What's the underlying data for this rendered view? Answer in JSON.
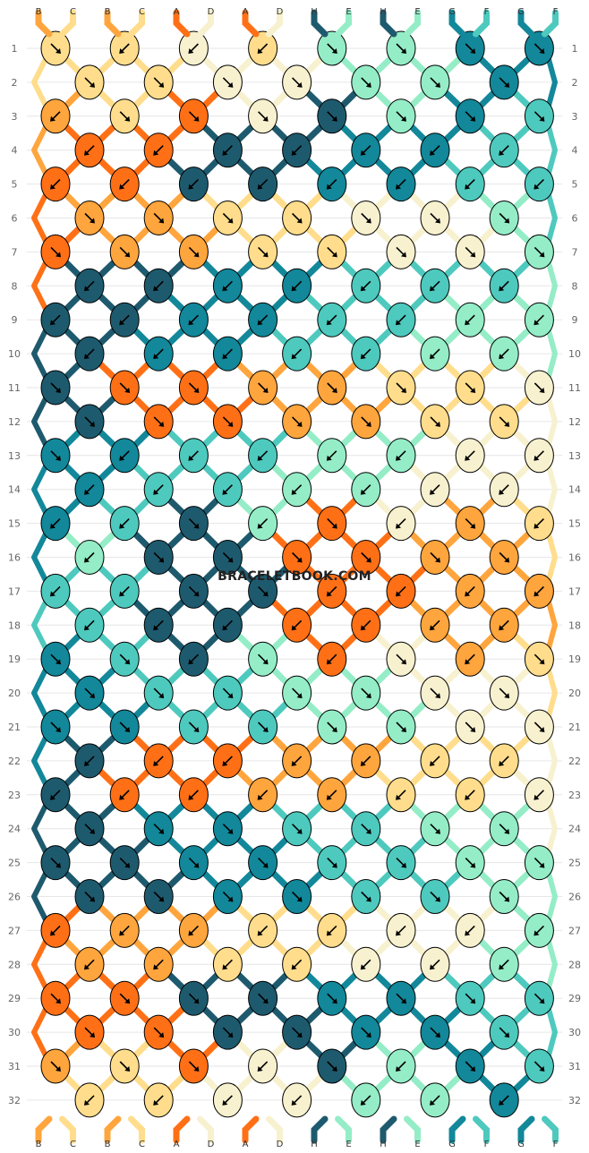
{
  "site_watermark": "BRACELETBOOK.COM",
  "strands": {
    "top_labels": [
      "B",
      "C",
      "B",
      "C",
      "A",
      "D",
      "A",
      "D",
      "H",
      "E",
      "H",
      "E",
      "G",
      "F",
      "G",
      "F"
    ],
    "bottom_labels": [
      "B",
      "C",
      "B",
      "C",
      "A",
      "D",
      "A",
      "D",
      "H",
      "E",
      "H",
      "E",
      "G",
      "F",
      "G",
      "F"
    ]
  },
  "color_map": {
    "A": "#ff7016",
    "B": "#ffa53d",
    "C": "#ffdd8c",
    "D": "#f7f1cf",
    "E": "#94edc7",
    "F": "#4ec9be",
    "G": "#12889a",
    "H": "#1e5a6e"
  },
  "rows": [
    "1",
    "2",
    "3",
    "4",
    "5",
    "6",
    "7",
    "8",
    "9",
    "10",
    "11",
    "12",
    "13",
    "14",
    "15",
    "16",
    "17",
    "18",
    "19",
    "20",
    "21",
    "22",
    "23",
    "24",
    "25",
    "26",
    "27",
    "28",
    "29",
    "30",
    "31",
    "32"
  ],
  "knot_rows": [
    {
      "colors": [
        "C",
        "C",
        "D",
        "C",
        "E",
        "E",
        "G",
        "G"
      ],
      "dirs": [
        "br",
        "bl",
        "bl",
        "bl",
        "br",
        "br",
        "br",
        "br"
      ]
    },
    {
      "colors": [
        "C",
        "C",
        "D",
        "D",
        "E",
        "E",
        "G"
      ],
      "dirs": [
        "br",
        "br",
        "br",
        "br",
        "br",
        "br",
        "br"
      ]
    },
    {
      "colors": [
        "B",
        "C",
        "A",
        "D",
        "H",
        "E",
        "G",
        "F"
      ],
      "dirs": [
        "bl",
        "br",
        "br",
        "br",
        "br",
        "br",
        "br",
        "br"
      ]
    },
    {
      "colors": [
        "A",
        "A",
        "H",
        "H",
        "G",
        "G",
        "F"
      ],
      "dirs": [
        "bl",
        "bl",
        "bl",
        "bl",
        "bl",
        "bl",
        "bl"
      ]
    },
    {
      "colors": [
        "A",
        "A",
        "H",
        "H",
        "G",
        "G",
        "F",
        "F"
      ],
      "dirs": [
        "bl",
        "bl",
        "bl",
        "bl",
        "bl",
        "bl",
        "bl",
        "bl"
      ]
    },
    {
      "colors": [
        "B",
        "B",
        "C",
        "C",
        "D",
        "D",
        "E"
      ],
      "dirs": [
        "br",
        "br",
        "br",
        "br",
        "br",
        "br",
        "br"
      ]
    },
    {
      "colors": [
        "A",
        "B",
        "B",
        "C",
        "C",
        "D",
        "D",
        "E"
      ],
      "dirs": [
        "br",
        "br",
        "br",
        "br",
        "br",
        "br",
        "br",
        "br"
      ]
    },
    {
      "colors": [
        "H",
        "H",
        "G",
        "G",
        "F",
        "F",
        "F"
      ],
      "dirs": [
        "bl",
        "bl",
        "bl",
        "bl",
        "bl",
        "bl",
        "bl"
      ]
    },
    {
      "colors": [
        "H",
        "H",
        "G",
        "G",
        "F",
        "F",
        "E",
        "E"
      ],
      "dirs": [
        "bl",
        "bl",
        "bl",
        "bl",
        "bl",
        "bl",
        "bl",
        "bl"
      ]
    },
    {
      "colors": [
        "H",
        "G",
        "G",
        "F",
        "F",
        "E",
        "E"
      ],
      "dirs": [
        "bl",
        "bl",
        "bl",
        "bl",
        "bl",
        "bl",
        "bl"
      ]
    },
    {
      "colors": [
        "H",
        "A",
        "A",
        "B",
        "B",
        "C",
        "C",
        "D"
      ],
      "dirs": [
        "br",
        "br",
        "br",
        "br",
        "br",
        "br",
        "br",
        "br"
      ]
    },
    {
      "colors": [
        "H",
        "A",
        "A",
        "B",
        "B",
        "C",
        "C"
      ],
      "dirs": [
        "br",
        "br",
        "br",
        "br",
        "br",
        "br",
        "br"
      ]
    },
    {
      "colors": [
        "G",
        "G",
        "F",
        "F",
        "E",
        "E",
        "D",
        "D"
      ],
      "dirs": [
        "br",
        "bl",
        "bl",
        "bl",
        "bl",
        "bl",
        "bl",
        "bl"
      ]
    },
    {
      "colors": [
        "G",
        "F",
        "F",
        "E",
        "E",
        "D",
        "D"
      ],
      "dirs": [
        "bl",
        "bl",
        "bl",
        "bl",
        "bl",
        "bl",
        "bl"
      ]
    },
    {
      "colors": [
        "G",
        "F",
        "H",
        "E",
        "A",
        "D",
        "B",
        "C"
      ],
      "dirs": [
        "bl",
        "bl",
        "br",
        "bl",
        "br",
        "bl",
        "br",
        "bl"
      ]
    },
    {
      "colors": [
        "E",
        "H",
        "H",
        "A",
        "A",
        "B",
        "B"
      ],
      "dirs": [
        "bl",
        "br",
        "br",
        "br",
        "br",
        "br",
        "br"
      ]
    },
    {
      "colors": [
        "F",
        "F",
        "H",
        "H",
        "A",
        "A",
        "B",
        "B"
      ],
      "dirs": [
        "bl",
        "bl",
        "br",
        "br",
        "bl",
        "bl",
        "bl",
        "bl"
      ]
    },
    {
      "colors": [
        "F",
        "H",
        "H",
        "A",
        "A",
        "B",
        "B"
      ],
      "dirs": [
        "bl",
        "bl",
        "bl",
        "bl",
        "bl",
        "bl",
        "bl"
      ]
    },
    {
      "colors": [
        "G",
        "F",
        "H",
        "E",
        "A",
        "D",
        "B",
        "C"
      ],
      "dirs": [
        "br",
        "br",
        "bl",
        "br",
        "bl",
        "br",
        "bl",
        "br"
      ]
    },
    {
      "colors": [
        "G",
        "F",
        "F",
        "E",
        "E",
        "D",
        "D"
      ],
      "dirs": [
        "br",
        "br",
        "br",
        "br",
        "br",
        "br",
        "br"
      ]
    },
    {
      "colors": [
        "G",
        "G",
        "F",
        "F",
        "E",
        "E",
        "D",
        "D"
      ],
      "dirs": [
        "br",
        "br",
        "br",
        "br",
        "br",
        "br",
        "br",
        "br"
      ]
    },
    {
      "colors": [
        "H",
        "A",
        "A",
        "B",
        "B",
        "C",
        "C"
      ],
      "dirs": [
        "bl",
        "bl",
        "bl",
        "bl",
        "bl",
        "bl",
        "bl"
      ]
    },
    {
      "colors": [
        "H",
        "A",
        "A",
        "B",
        "B",
        "C",
        "C",
        "D"
      ],
      "dirs": [
        "bl",
        "bl",
        "bl",
        "bl",
        "bl",
        "bl",
        "bl",
        "bl"
      ]
    },
    {
      "colors": [
        "H",
        "G",
        "G",
        "F",
        "F",
        "E",
        "E"
      ],
      "dirs": [
        "br",
        "br",
        "br",
        "br",
        "br",
        "br",
        "br"
      ]
    },
    {
      "colors": [
        "H",
        "H",
        "G",
        "G",
        "F",
        "F",
        "E",
        "E"
      ],
      "dirs": [
        "br",
        "br",
        "br",
        "br",
        "br",
        "br",
        "br",
        "br"
      ]
    },
    {
      "colors": [
        "H",
        "H",
        "G",
        "G",
        "F",
        "F",
        "E"
      ],
      "dirs": [
        "br",
        "br",
        "br",
        "br",
        "br",
        "br",
        "br"
      ]
    },
    {
      "colors": [
        "A",
        "B",
        "B",
        "C",
        "C",
        "D",
        "D",
        "E"
      ],
      "dirs": [
        "bl",
        "bl",
        "bl",
        "bl",
        "bl",
        "bl",
        "bl",
        "bl"
      ]
    },
    {
      "colors": [
        "B",
        "B",
        "C",
        "C",
        "D",
        "D",
        "E"
      ],
      "dirs": [
        "bl",
        "bl",
        "bl",
        "bl",
        "bl",
        "bl",
        "bl"
      ]
    },
    {
      "colors": [
        "A",
        "A",
        "H",
        "H",
        "G",
        "G",
        "F",
        "F"
      ],
      "dirs": [
        "br",
        "br",
        "br",
        "br",
        "br",
        "br",
        "br",
        "br"
      ]
    },
    {
      "colors": [
        "A",
        "A",
        "H",
        "H",
        "G",
        "G",
        "F"
      ],
      "dirs": [
        "br",
        "br",
        "br",
        "br",
        "br",
        "br",
        "br"
      ]
    },
    {
      "colors": [
        "B",
        "C",
        "A",
        "D",
        "H",
        "E",
        "G",
        "F"
      ],
      "dirs": [
        "br",
        "br",
        "br",
        "bl",
        "br",
        "bl",
        "br",
        "br"
      ]
    },
    {
      "colors": [
        "C",
        "C",
        "D",
        "D",
        "E",
        "E",
        "G"
      ],
      "dirs": [
        "bl",
        "bl",
        "bl",
        "bl",
        "bl",
        "bl",
        "bl"
      ]
    }
  ]
}
